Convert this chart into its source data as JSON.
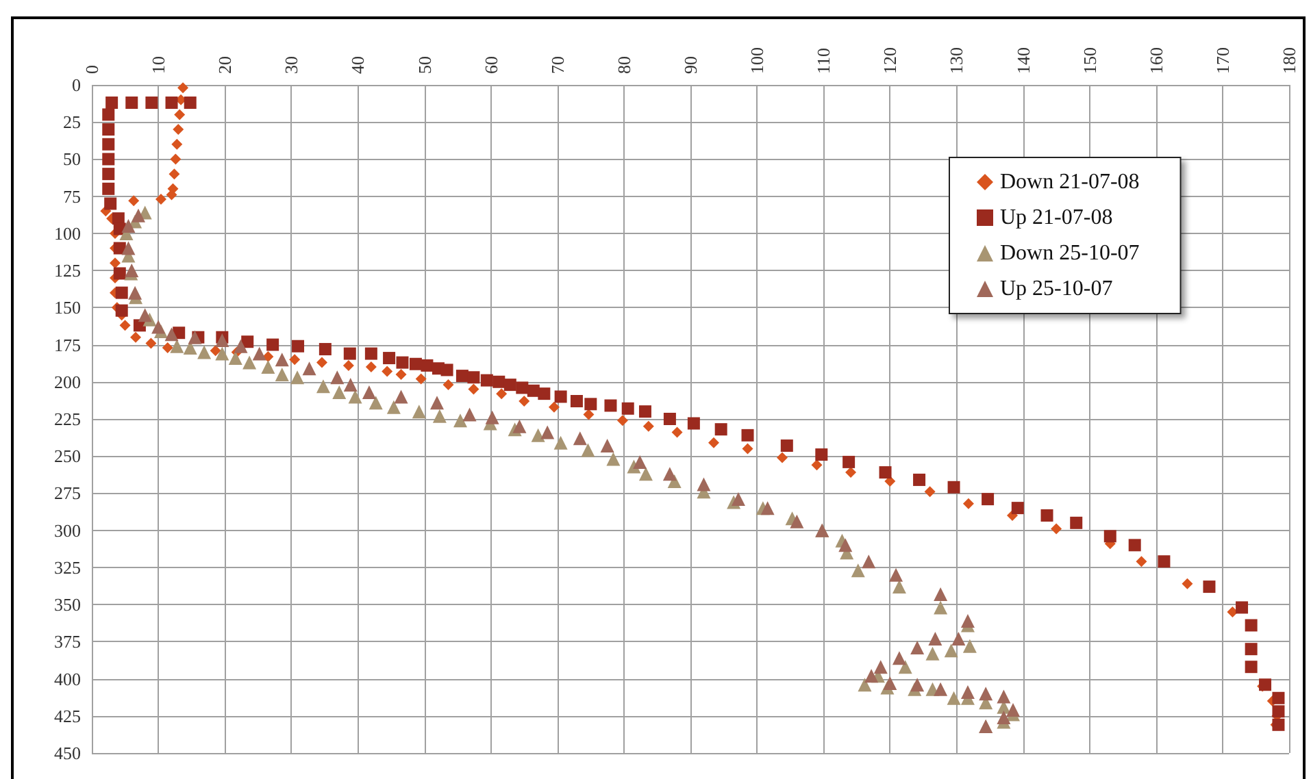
{
  "chart_data": {
    "type": "scatter",
    "xlim": [
      0,
      180
    ],
    "xticks": [
      0,
      10,
      20,
      30,
      40,
      50,
      60,
      70,
      80,
      90,
      100,
      110,
      120,
      130,
      140,
      150,
      160,
      170,
      180
    ],
    "ylim": [
      450,
      0
    ],
    "yticks": [
      0,
      25,
      50,
      75,
      100,
      125,
      150,
      175,
      200,
      225,
      250,
      275,
      300,
      325,
      350,
      375,
      400,
      425,
      450
    ],
    "grid": true,
    "legend": "top right",
    "series": [
      {
        "name": "Down 21-07-08",
        "color": "#d9541e",
        "marker": "diamond",
        "x": [
          13.7,
          13.4,
          13.2,
          13,
          12.8,
          12.6,
          12.4,
          12.2,
          12,
          10.4,
          6.3,
          2.1,
          3,
          3.5,
          3.5,
          3.5,
          3.5,
          3.5,
          3.8,
          4.5,
          5,
          6.6,
          8.9,
          11.4,
          18.6,
          21.8,
          26.5,
          30.5,
          34.6,
          38.6,
          42,
          44.4,
          46.5,
          49.5,
          53.6,
          57.4,
          61.6,
          65,
          69.5,
          74.7,
          79.8,
          83.7,
          88,
          93.5,
          98.6,
          103.8,
          109,
          114.1,
          120,
          126,
          131.8,
          138.4,
          145,
          153.1,
          157.8,
          164.7,
          171.5,
          176,
          177.5,
          178.2,
          178
        ],
        "values": [
          2,
          10,
          20,
          30,
          40,
          50,
          60,
          70,
          74,
          77,
          78,
          85,
          90,
          100,
          110,
          120,
          130,
          140,
          150,
          155,
          162,
          170,
          174,
          177,
          179,
          180,
          183,
          185,
          187,
          189,
          190,
          193,
          195,
          198,
          202,
          205,
          208,
          213,
          217,
          222,
          226,
          230,
          234,
          241,
          245,
          251,
          256,
          261,
          267,
          274,
          282,
          290,
          299,
          309,
          321,
          336,
          355,
          405,
          415,
          425,
          431
        ]
      },
      {
        "name": "Up 21-07-08",
        "color": "#9b2a1e",
        "marker": "square",
        "x": [
          14.8,
          12,
          9,
          6,
          3,
          2.5,
          2.5,
          2.5,
          2.5,
          2.5,
          2.5,
          2.8,
          4,
          4.2,
          4.2,
          4.2,
          4.5,
          4.5,
          7.2,
          13.1,
          16,
          19.6,
          23.4,
          27.2,
          31,
          35.1,
          38.8,
          42,
          44.7,
          46.7,
          48.7,
          50.4,
          52.1,
          53.4,
          55.7,
          57.4,
          59.4,
          61.2,
          62.9,
          64.7,
          66.4,
          68,
          70.5,
          72.9,
          75,
          78,
          80.6,
          83.2,
          86.9,
          90.5,
          94.6,
          98.6,
          104.5,
          109.7,
          113.8,
          119.3,
          124.4,
          129.6,
          134.7,
          139.2,
          143.6,
          148,
          153.1,
          156.8,
          161.2,
          168,
          172.9,
          174.3,
          174.3,
          174.3,
          176.4,
          178.4,
          178.4,
          178.4
        ],
        "values": [
          12,
          12,
          12,
          12,
          12,
          20,
          30,
          40,
          50,
          60,
          70,
          80,
          90,
          97,
          110,
          127,
          140,
          152,
          162,
          167,
          170,
          170,
          173,
          175,
          176,
          178,
          181,
          181,
          184,
          187,
          188,
          189,
          191,
          192,
          196,
          197,
          199,
          200,
          202,
          204,
          206,
          208,
          210,
          213,
          215,
          216,
          218,
          220,
          225,
          228,
          232,
          236,
          243,
          249,
          254,
          261,
          266,
          271,
          279,
          285,
          290,
          295,
          304,
          310,
          321,
          338,
          352,
          364,
          380,
          392,
          404,
          413,
          422,
          431
        ]
      },
      {
        "name": "Down 25-10-07",
        "color": "#a89572",
        "marker": "triangle",
        "x": [
          8,
          6.5,
          5.2,
          5.5,
          5.9,
          6.6,
          8.7,
          10.4,
          12.8,
          14.8,
          16.9,
          19.6,
          21.6,
          23.7,
          26.5,
          28.6,
          30.9,
          34.8,
          37.2,
          39.6,
          42.7,
          45.4,
          49.2,
          52.3,
          55.4,
          59.9,
          63.6,
          67.1,
          70.5,
          74.6,
          78.4,
          81.5,
          83.3,
          87.6,
          92,
          96.5,
          100.9,
          105.3,
          109.8,
          112.8,
          113.5,
          115.2,
          121.4,
          127.6,
          131.7,
          132,
          129.2,
          126.4,
          122.3,
          118.2,
          116.2,
          119.6,
          123.7,
          126.4,
          129.6,
          131.7,
          134.4,
          137.1,
          138.5,
          137.1,
          134.4
        ],
        "values": [
          86,
          92,
          100,
          115,
          127,
          143,
          158,
          166,
          176,
          177,
          180,
          181,
          184,
          187,
          190,
          195,
          197,
          203,
          207,
          210,
          214,
          217,
          220,
          223,
          226,
          228,
          232,
          236,
          241,
          246,
          252,
          257,
          262,
          267,
          274,
          281,
          285,
          292,
          300,
          307,
          315,
          327,
          338,
          352,
          364,
          378,
          381,
          383,
          392,
          398,
          404,
          406,
          407,
          407,
          413,
          413,
          416,
          419,
          424,
          429,
          432
        ]
      },
      {
        "name": "Up 25-10-07",
        "color": "#a0685a",
        "marker": "triangle",
        "x": [
          7,
          5.5,
          5.5,
          6,
          6.5,
          8,
          10,
          12,
          15.5,
          19.6,
          22.4,
          25.2,
          28.6,
          32.7,
          36.9,
          38.9,
          41.7,
          46.5,
          51.9,
          56.8,
          60.2,
          64.3,
          68.5,
          73.4,
          77.5,
          82.4,
          86.9,
          92,
          97.2,
          101.6,
          106,
          109.8,
          113.3,
          116.8,
          120.9,
          127.6,
          131.7,
          130.3,
          126.8,
          124.1,
          121.4,
          118.6,
          117.2,
          120,
          124.1,
          127.6,
          131.7,
          134.4,
          137.1,
          138.5,
          137.1,
          134.4
        ],
        "values": [
          88,
          95,
          110,
          125,
          140,
          155,
          163,
          168,
          170,
          172,
          176,
          181,
          185,
          191,
          197,
          202,
          207,
          210,
          214,
          222,
          224,
          230,
          234,
          238,
          243,
          254,
          262,
          269,
          279,
          285,
          294,
          300,
          310,
          321,
          330,
          343,
          361,
          373,
          373,
          379,
          386,
          392,
          398,
          403,
          404,
          407,
          409,
          410,
          412,
          421,
          426,
          432
        ]
      }
    ]
  }
}
